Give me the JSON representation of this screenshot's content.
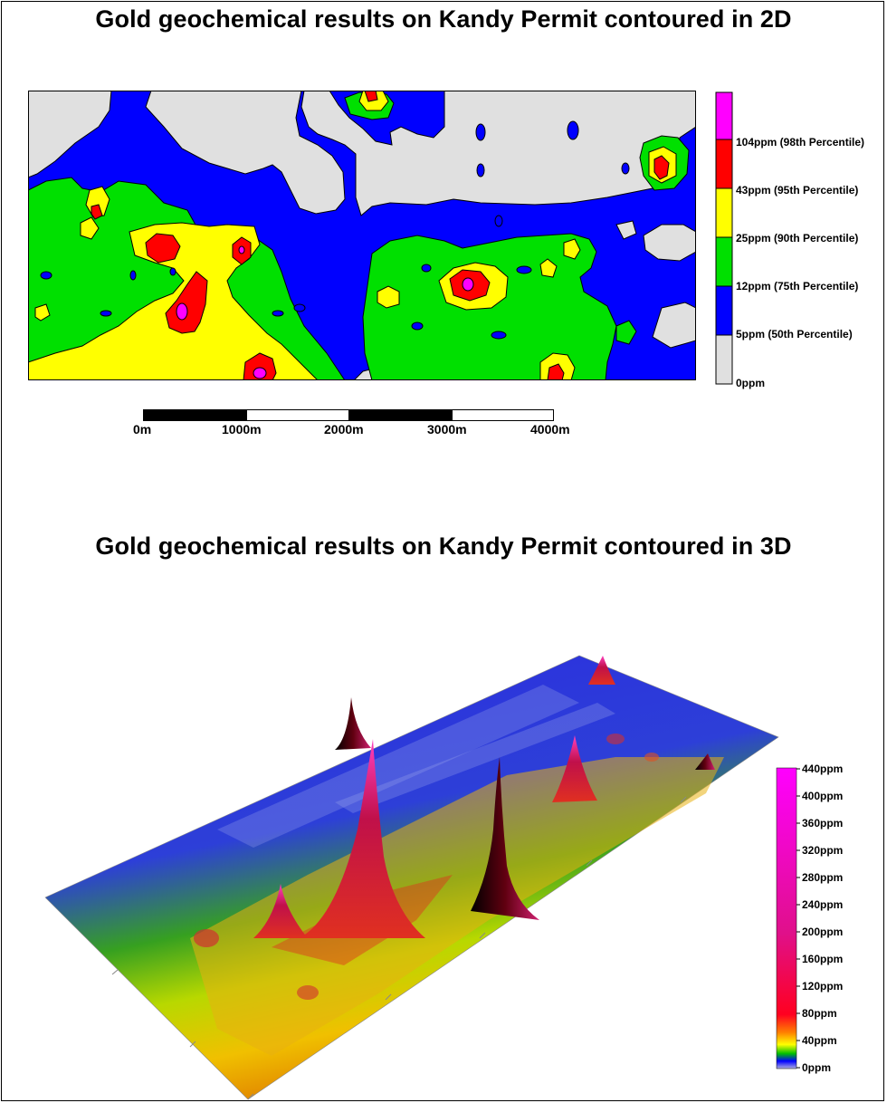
{
  "title_2d": "Gold geochemical results on Kandy Permit contoured in 2D",
  "title_3d": "Gold geochemical results on Kandy Permit contoured in 3D",
  "legend_2d": {
    "classes": [
      {
        "label": "0ppm",
        "color": "#e0e0e0"
      },
      {
        "label": "5ppm  (50th Percentile)",
        "color": "#0000ff"
      },
      {
        "label": "12ppm  (75th Percentile)",
        "color": "#00e000"
      },
      {
        "label": "25ppm  (90th Percentile)",
        "color": "#ffff00"
      },
      {
        "label": "43ppm  (95th Percentile)",
        "color": "#ff0000"
      },
      {
        "label": "104ppm  (98th Percentile)",
        "color": "#ff00ff"
      }
    ]
  },
  "scale_bar": {
    "ticks": [
      "0m",
      "1000m",
      "2000m",
      "3000m",
      "4000m"
    ]
  },
  "legend_3d": {
    "ticks": [
      "440ppm",
      "400ppm",
      "360ppm",
      "320ppm",
      "280ppm",
      "240ppm",
      "200ppm",
      "160ppm",
      "120ppm",
      "80ppm",
      "40ppm",
      "0ppm"
    ]
  }
}
